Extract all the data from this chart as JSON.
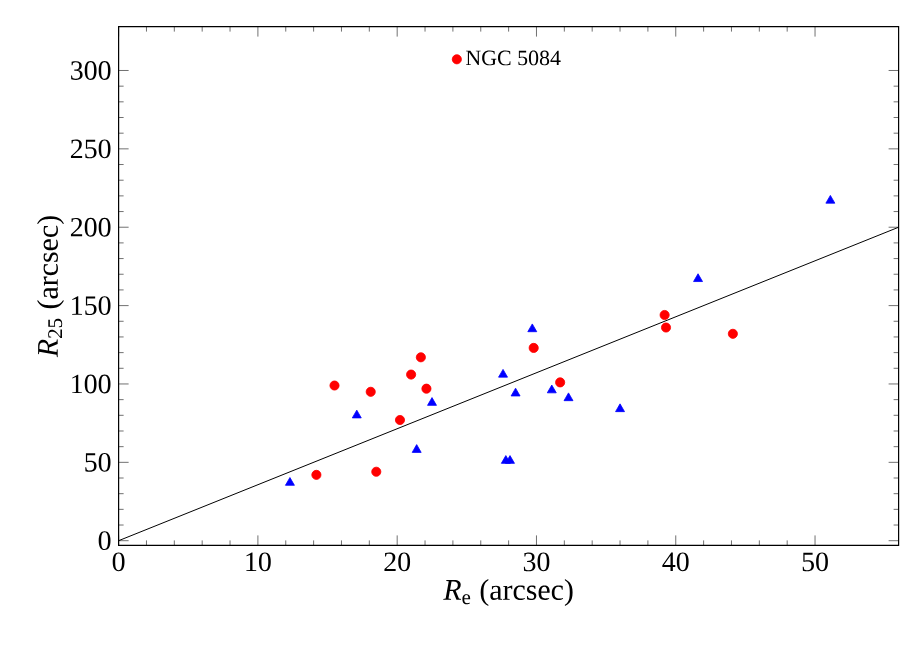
{
  "chart_data": {
    "type": "scatter",
    "xlabel": "*R*$_{e}$ (arcsec)",
    "ylabel": "*R*$_{25}$ (arcsec)",
    "xlim": [
      0,
      56
    ],
    "ylim": [
      -3,
      328
    ],
    "xticks": [
      0,
      10,
      20,
      30,
      40,
      50
    ],
    "yticks": [
      0,
      50,
      100,
      150,
      200,
      250,
      300
    ],
    "grid": false,
    "legend": "top",
    "series": [
      {
        "name": "NGC 5084",
        "color": "#ff0000",
        "marker": "circle",
        "x": [
          14.2,
          15.5,
          18.1,
          18.5,
          20.2,
          21.0,
          21.7,
          22.1,
          29.8,
          31.7,
          39.2,
          39.3,
          44.1
        ],
        "values": [
          42,
          99,
          95,
          44,
          77,
          106,
          117,
          97,
          123,
          101,
          144,
          136,
          132
        ]
      },
      {
        "color": "#0000ff",
        "marker": "triangle",
        "x": [
          12.3,
          17.1,
          21.4,
          22.5,
          27.6,
          27.8,
          28.1,
          28.5,
          29.7,
          31.1,
          32.3,
          36.0,
          41.6,
          51.1
        ],
        "values": [
          37,
          80,
          58,
          88,
          106,
          51,
          51,
          94,
          135,
          96,
          91,
          84,
          167,
          217
        ]
      },
      {
        "type": "line",
        "color": "#000000",
        "marker": "none",
        "line_style": "solid",
        "x": [
          0,
          56
        ],
        "values": [
          0,
          200
        ]
      }
    ]
  }
}
